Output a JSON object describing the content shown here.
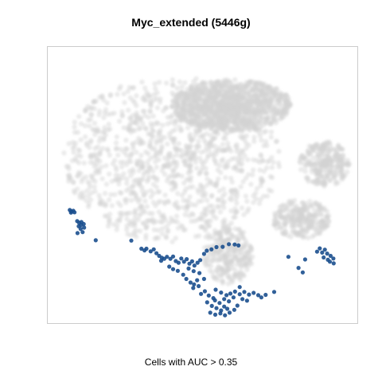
{
  "chart_data": {
    "type": "scatter",
    "title": "Myc_extended (5446g)",
    "xlabel": "Cells with AUC > 0.35",
    "ylabel": "",
    "axes_visible": false,
    "grid": false,
    "legend": "none",
    "colors": {
      "background_cells": "#d3d3d3",
      "high_auc_cells": "#1b4f8e",
      "frame": "#cccccc"
    },
    "series": [
      {
        "role": "all cells (AUC <= 0.35)",
        "color": "#d3d3d3",
        "clusters": [
          {
            "region": "main body",
            "x": [
              -36,
              20
            ],
            "y": [
              -20,
              31
            ],
            "density": "high"
          },
          {
            "region": "upper lobe",
            "x": [
              -8,
              23
            ],
            "y": [
              14,
              30
            ],
            "density": "high"
          },
          {
            "region": "right island",
            "x": [
              25,
              38
            ],
            "y": [
              -3,
              11
            ],
            "density": "medium"
          },
          {
            "region": "lower right patch",
            "x": [
              18,
              33
            ],
            "y": [
              -19,
              -7
            ],
            "density": "medium"
          },
          {
            "region": "bottom lobe",
            "x": [
              0,
              13
            ],
            "y": [
              -33,
              -15
            ],
            "density": "medium"
          }
        ]
      },
      {
        "role": "cells with AUC > 0.35",
        "color": "#1b4f8e",
        "points": [
          [
            -34.3,
            -10.2
          ],
          [
            -33.9,
            -10.6
          ],
          [
            -33.4,
            -10.4
          ],
          [
            -34.0,
            -11.0
          ],
          [
            -33.1,
            -10.9
          ],
          [
            -32.4,
            -13.6
          ],
          [
            -31.9,
            -14.1
          ],
          [
            -31.3,
            -13.9
          ],
          [
            -30.7,
            -14.5
          ],
          [
            -31.4,
            -14.8
          ],
          [
            -32.0,
            -15.2
          ],
          [
            -30.6,
            -15.6
          ],
          [
            -31.5,
            -16.0
          ],
          [
            -31.0,
            -17.0
          ],
          [
            -32.3,
            -17.3
          ],
          [
            -27.6,
            -19.5
          ],
          [
            -18.4,
            -19.6
          ],
          [
            -15.8,
            -22.1
          ],
          [
            -15.0,
            -22.6
          ],
          [
            -14.5,
            -22.1
          ],
          [
            -13.4,
            -22.9
          ],
          [
            -12.6,
            -22.3
          ],
          [
            -11.9,
            -23.5
          ],
          [
            -11.2,
            -24.3
          ],
          [
            -10.5,
            -24.9
          ],
          [
            -9.9,
            -25.2
          ],
          [
            -10.7,
            -25.8
          ],
          [
            -9.2,
            -24.6
          ],
          [
            -8.3,
            -25.2
          ],
          [
            -7.6,
            -24.5
          ],
          [
            -6.9,
            -25.9
          ],
          [
            -6.2,
            -26.4
          ],
          [
            -5.5,
            -25.1
          ],
          [
            -4.8,
            -26.1
          ],
          [
            -4.1,
            -25.3
          ],
          [
            -3.4,
            -26.7
          ],
          [
            -2.7,
            -26.0
          ],
          [
            -2.1,
            -27.3
          ],
          [
            -1.3,
            -26.4
          ],
          [
            -0.6,
            -25.6
          ],
          [
            0.4,
            -23.7
          ],
          [
            1.1,
            -22.7
          ],
          [
            2.3,
            -22.3
          ],
          [
            3.6,
            -21.6
          ],
          [
            5.2,
            -21.5
          ],
          [
            6.8,
            -20.7
          ],
          [
            8.3,
            -20.8
          ],
          [
            9.3,
            -21.1
          ],
          [
            -8.6,
            -27.6
          ],
          [
            -7.6,
            -28.4
          ],
          [
            -6.4,
            -28.9
          ],
          [
            -5.0,
            -30.1
          ],
          [
            -4.2,
            -31.4
          ],
          [
            -3.1,
            -32.5
          ],
          [
            -2.2,
            -33.1
          ],
          [
            -3.6,
            -28.2
          ],
          [
            -2.3,
            -29.0
          ],
          [
            -0.8,
            -29.6
          ],
          [
            0.4,
            -31.4
          ],
          [
            -1.4,
            -31.8
          ],
          [
            -2.4,
            -34.2
          ],
          [
            -1.0,
            -33.6
          ],
          [
            -0.4,
            -36.0
          ],
          [
            0.6,
            -35.2
          ],
          [
            1.6,
            -36.5
          ],
          [
            2.8,
            -37.3
          ],
          [
            1.2,
            -38.6
          ],
          [
            2.4,
            -39.7
          ],
          [
            3.6,
            -40.4
          ],
          [
            4.8,
            -41.1
          ],
          [
            5.6,
            -39.9
          ],
          [
            6.4,
            -40.6
          ],
          [
            3.2,
            -38.0
          ],
          [
            4.4,
            -38.8
          ],
          [
            5.6,
            -37.6
          ],
          [
            6.8,
            -38.3
          ],
          [
            8.0,
            -37.1
          ],
          [
            7.2,
            -35.9
          ],
          [
            8.4,
            -35.3
          ],
          [
            9.6,
            -36.1
          ],
          [
            10.8,
            -35.4
          ],
          [
            12.0,
            -36.2
          ],
          [
            13.2,
            -35.7
          ],
          [
            14.4,
            -36.4
          ],
          [
            10.3,
            -37.6
          ],
          [
            11.5,
            -38.1
          ],
          [
            2.0,
            -41.8
          ],
          [
            3.3,
            -42.4
          ],
          [
            4.6,
            -42.0
          ],
          [
            5.8,
            -42.6
          ],
          [
            7.0,
            -41.8
          ],
          [
            8.2,
            -40.9
          ],
          [
            9.0,
            -39.6
          ],
          [
            6.2,
            -36.4
          ],
          [
            4.8,
            -35.6
          ],
          [
            3.4,
            -34.7
          ],
          [
            9.6,
            -33.9
          ],
          [
            16.3,
            -36.3
          ],
          [
            18.5,
            -35.4
          ],
          [
            15.2,
            -37.1
          ],
          [
            22.2,
            -24.6
          ],
          [
            26.5,
            -25.4
          ],
          [
            24.8,
            -28.0
          ],
          [
            25.9,
            -29.4
          ],
          [
            29.6,
            -23.0
          ],
          [
            30.3,
            -22.0
          ],
          [
            30.9,
            -23.3
          ],
          [
            31.6,
            -22.4
          ],
          [
            32.2,
            -23.6
          ],
          [
            31.3,
            -24.8
          ],
          [
            32.4,
            -25.5
          ],
          [
            33.1,
            -24.3
          ],
          [
            33.8,
            -25.1
          ],
          [
            32.9,
            -26.1
          ],
          [
            33.9,
            -26.6
          ]
        ]
      }
    ]
  }
}
